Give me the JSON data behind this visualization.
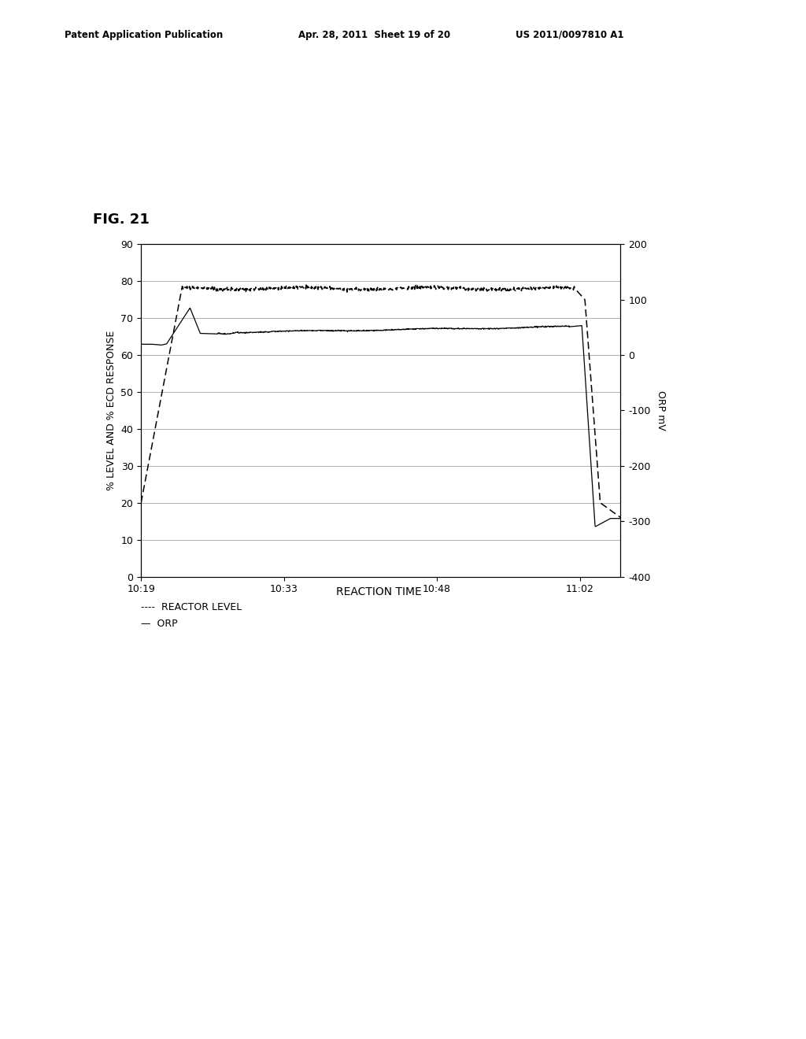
{
  "title": "FIG. 21",
  "xlabel": "REACTION TIME",
  "ylabel_left": "% LEVEL AND % ECD RESPONSE",
  "ylabel_right": "ORP mV",
  "xtick_labels": [
    "10:19",
    "10:33",
    "10:48",
    "11:02"
  ],
  "ylim_left": [
    0,
    90
  ],
  "ylim_right": [
    -400,
    200
  ],
  "yticks_left": [
    0,
    10,
    20,
    30,
    40,
    50,
    60,
    70,
    80,
    90
  ],
  "yticks_right": [
    -400,
    -300,
    -200,
    -100,
    0,
    100,
    200
  ],
  "header_left": "Patent Application Publication",
  "header_mid": "Apr. 28, 2011  Sheet 19 of 20",
  "header_right": "US 2011/0097810 A1",
  "background_color": "#ffffff",
  "line_color": "#000000",
  "grid_color": "#b0b0b0",
  "xlim": [
    0,
    47
  ],
  "xtick_pos": [
    0,
    14,
    29,
    43
  ]
}
